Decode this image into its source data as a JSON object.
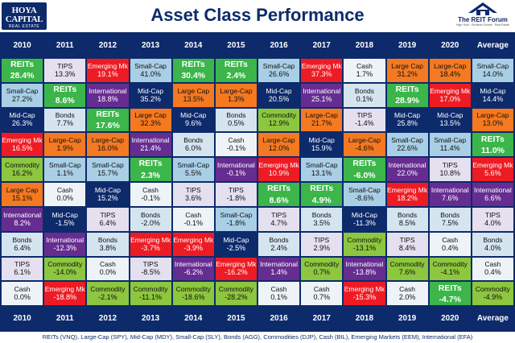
{
  "header": {
    "title": "Asset Class Performance",
    "logo_left": {
      "line1": "HOYA",
      "line2": "CAPITAL",
      "line3": "REAL ESTATE"
    },
    "logo_right": {
      "name": "The REIT Forum",
      "tagline": "High Yield · Dividend Growth · Real Estate"
    }
  },
  "colors": {
    "REITs": "#3cb54a",
    "Small-Cap": "#a9cfe6",
    "Mid-Cap": "#0d2a6b",
    "Large-Cap": "#f47920",
    "Bonds": "#d5e5f0",
    "Commodity": "#8dc63f",
    "Cash": "#eef3f7",
    "TIPS": "#e4e0ef",
    "Emerging Mk": "#ed1c24",
    "International": "#662d91"
  },
  "chart_data": {
    "type": "table",
    "title": "Asset Class Performance",
    "columns": [
      "2010",
      "2011",
      "2012",
      "2013",
      "2014",
      "2015",
      "2016",
      "2017",
      "2018",
      "2019",
      "2020",
      "Average"
    ],
    "rows": [
      [
        {
          "a": "REITs",
          "v": "28.4%"
        },
        {
          "a": "TIPS",
          "v": "13.3%"
        },
        {
          "a": "Emerging Mk",
          "v": "19.1%"
        },
        {
          "a": "Small-Cap",
          "v": "41.0%"
        },
        {
          "a": "REITs",
          "v": "30.4%"
        },
        {
          "a": "REITs",
          "v": "2.4%"
        },
        {
          "a": "Small-Cap",
          "v": "26.6%"
        },
        {
          "a": "Emerging Mk",
          "v": "37.3%"
        },
        {
          "a": "Cash",
          "v": "1.7%"
        },
        {
          "a": "Large Cap",
          "v": "31.2%"
        },
        {
          "a": "Large-Cap",
          "v": "18.4%"
        },
        {
          "a": "Small-Cap",
          "v": "14.0%"
        }
      ],
      [
        {
          "a": "Small-Cap",
          "v": "27.2%"
        },
        {
          "a": "REITs",
          "v": "8.6%"
        },
        {
          "a": "International",
          "v": "18.8%"
        },
        {
          "a": "Mid-Cap",
          "v": "35.2%"
        },
        {
          "a": "Large Cap",
          "v": "13.5%"
        },
        {
          "a": "Large-Cap",
          "v": "1.3%"
        },
        {
          "a": "Mid-Cap",
          "v": "20.5%"
        },
        {
          "a": "International",
          "v": "25.1%"
        },
        {
          "a": "Bonds",
          "v": "0.1%"
        },
        {
          "a": "REITs",
          "v": "28.9%"
        },
        {
          "a": "Emerging Mk",
          "v": "17.0%"
        },
        {
          "a": "Mid-Cap",
          "v": "14.4%"
        }
      ],
      [
        {
          "a": "Mid-Cap",
          "v": "26.3%"
        },
        {
          "a": "Bonds",
          "v": "7.7%"
        },
        {
          "a": "REITs",
          "v": "17.6%"
        },
        {
          "a": "Large Cap",
          "v": "32.3%"
        },
        {
          "a": "Mid-Cap",
          "v": "9.6%"
        },
        {
          "a": "Bonds",
          "v": "0.5%"
        },
        {
          "a": "Commodity",
          "v": "12.9%"
        },
        {
          "a": "Large-Cap",
          "v": "21.7%"
        },
        {
          "a": "TIPS",
          "v": "-1.4%"
        },
        {
          "a": "Mid-Cap",
          "v": "25.8%"
        },
        {
          "a": "Mid-Cap",
          "v": "13.5%"
        },
        {
          "a": "Large-Cap",
          "v": "13.0%"
        }
      ],
      [
        {
          "a": "Emerging Mk",
          "v": "16.5%"
        },
        {
          "a": "Large-Cap",
          "v": "1.9%"
        },
        {
          "a": "Large-Cap",
          "v": "16.0%"
        },
        {
          "a": "International",
          "v": "21.4%"
        },
        {
          "a": "Bonds",
          "v": "6.0%"
        },
        {
          "a": "Cash",
          "v": "-0.1%"
        },
        {
          "a": "Large-Cap",
          "v": "12.0%"
        },
        {
          "a": "Mid-Cap",
          "v": "15.9%"
        },
        {
          "a": "Large-Cap",
          "v": "-4.6%"
        },
        {
          "a": "Small-Cap",
          "v": "22.6%"
        },
        {
          "a": "Small-Cap",
          "v": "11.4%"
        },
        {
          "a": "REITs",
          "v": "11.0%"
        }
      ],
      [
        {
          "a": "Commodity",
          "v": "16.2%"
        },
        {
          "a": "Small-Cap",
          "v": "1.1%"
        },
        {
          "a": "Small-Cap",
          "v": "15.7%"
        },
        {
          "a": "REITs",
          "v": "2.3%"
        },
        {
          "a": "Small-Cap",
          "v": "5.5%"
        },
        {
          "a": "International",
          "v": "-0.1%"
        },
        {
          "a": "Emerging Mk",
          "v": "10.9%"
        },
        {
          "a": "Small-Cap",
          "v": "13.1%"
        },
        {
          "a": "REITs",
          "v": "-6.0%"
        },
        {
          "a": "International",
          "v": "22.0%"
        },
        {
          "a": "TIPS",
          "v": "10.8%"
        },
        {
          "a": "Emerging Mk",
          "v": "5.6%"
        }
      ],
      [
        {
          "a": "Large Cap",
          "v": "15.1%"
        },
        {
          "a": "Cash",
          "v": "0.0%"
        },
        {
          "a": "Mid-Cap",
          "v": "15.2%"
        },
        {
          "a": "Cash",
          "v": "-0.1%"
        },
        {
          "a": "TIPS",
          "v": "3.6%"
        },
        {
          "a": "TIPS",
          "v": "-1.8%"
        },
        {
          "a": "REITs",
          "v": "8.6%"
        },
        {
          "a": "REITs",
          "v": "4.9%"
        },
        {
          "a": "Small-Cap",
          "v": "-8.6%"
        },
        {
          "a": "Emerging Mk",
          "v": "18.2%"
        },
        {
          "a": "International",
          "v": "7.6%"
        },
        {
          "a": "International",
          "v": "6.6%"
        }
      ],
      [
        {
          "a": "International",
          "v": "8.2%"
        },
        {
          "a": "Mid-Cap",
          "v": "-1.5%"
        },
        {
          "a": "TIPS",
          "v": "6.4%"
        },
        {
          "a": "Bonds",
          "v": "-2.0%"
        },
        {
          "a": "Cash",
          "v": "-0.1%"
        },
        {
          "a": "Small-Cap",
          "v": "-1.8%"
        },
        {
          "a": "TIPS",
          "v": "4.7%"
        },
        {
          "a": "Bonds",
          "v": "3.5%"
        },
        {
          "a": "Mid-Cap",
          "v": "-11.3%"
        },
        {
          "a": "Bonds",
          "v": "8.5%"
        },
        {
          "a": "Bonds",
          "v": "7.5%"
        },
        {
          "a": "TIPS",
          "v": "4.0%"
        }
      ],
      [
        {
          "a": "Bonds",
          "v": "6.4%"
        },
        {
          "a": "International",
          "v": "-12.3%"
        },
        {
          "a": "Bonds",
          "v": "3.8%"
        },
        {
          "a": "Emerging Mk",
          "v": "-3.7%"
        },
        {
          "a": "Emerging Mk",
          "v": "-3.9%"
        },
        {
          "a": "Mid-Cap",
          "v": "-2.5%"
        },
        {
          "a": "Bonds",
          "v": "2.4%"
        },
        {
          "a": "TIPS",
          "v": "2.9%"
        },
        {
          "a": "Commodity",
          "v": "-13.1%"
        },
        {
          "a": "TIPS",
          "v": "8.4%"
        },
        {
          "a": "Cash",
          "v": "0.4%"
        },
        {
          "a": "Bonds",
          "v": "4.0%"
        }
      ],
      [
        {
          "a": "TIPS",
          "v": "6.1%"
        },
        {
          "a": "Commodity",
          "v": "-14.0%"
        },
        {
          "a": "Cash",
          "v": "0.0%"
        },
        {
          "a": "TIPS",
          "v": "-8.5%"
        },
        {
          "a": "International",
          "v": "-6.2%"
        },
        {
          "a": "Emerging Mk",
          "v": "-16.2%"
        },
        {
          "a": "International",
          "v": "1.4%"
        },
        {
          "a": "Commodity",
          "v": "0.7%"
        },
        {
          "a": "International",
          "v": "-13.8%"
        },
        {
          "a": "Commodity",
          "v": "7.6%"
        },
        {
          "a": "Commodity",
          "v": "-4.1%"
        },
        {
          "a": "Cash",
          "v": "0.4%"
        }
      ],
      [
        {
          "a": "Cash",
          "v": "0.0%"
        },
        {
          "a": "Emerging Mk",
          "v": "-18.8%"
        },
        {
          "a": "Commodity",
          "v": "-2.1%"
        },
        {
          "a": "Commodity",
          "v": "-11.1%"
        },
        {
          "a": "Commodity",
          "v": "-18.6%"
        },
        {
          "a": "Commodity",
          "v": "-28.2%"
        },
        {
          "a": "Cash",
          "v": "0.1%"
        },
        {
          "a": "Cash",
          "v": "0.7%"
        },
        {
          "a": "Emerging Mk",
          "v": "-15.3%"
        },
        {
          "a": "Cash",
          "v": "2.0%"
        },
        {
          "a": "REITs",
          "v": "-4.7%"
        },
        {
          "a": "Commodity",
          "v": "-4.9%"
        }
      ]
    ],
    "footnote": "REITs (VNQ), Large-Cap (SPY), Mid-Cap (MDY), Small-Cap (SLY), Bonds (AGG), Commodities (DJP), Cash (BIL), Emerging Markets (EEM), International (EFA)"
  }
}
